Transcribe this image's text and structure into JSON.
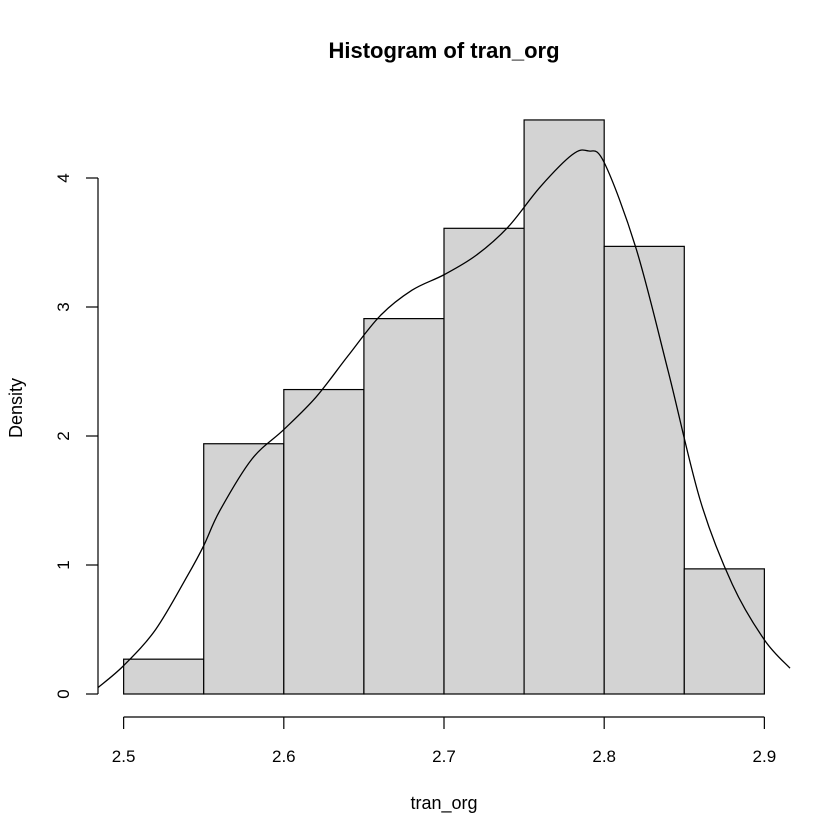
{
  "chart_data": {
    "type": "bar",
    "title": "Histogram of tran_org",
    "xlabel": "tran_org",
    "ylabel": "Density",
    "bin_edges": [
      2.5,
      2.55,
      2.6,
      2.65,
      2.7,
      2.75,
      2.8,
      2.85,
      2.9
    ],
    "values": [
      0.27,
      1.94,
      2.36,
      2.91,
      3.61,
      4.45,
      3.47,
      0.97
    ],
    "bar_color": "#d3d3d3",
    "xticks": [
      2.5,
      2.6,
      2.7,
      2.8,
      2.9
    ],
    "xtick_labels": [
      "2.5",
      "2.6",
      "2.7",
      "2.8",
      "2.9"
    ],
    "yticks": [
      0,
      1,
      2,
      3,
      4
    ],
    "ytick_labels": [
      "0",
      "1",
      "2",
      "3",
      "4"
    ],
    "xlim": [
      2.484,
      2.916
    ],
    "ylim": [
      0,
      4.45
    ],
    "grid": false,
    "density_curve": {
      "x": [
        2.484,
        2.5,
        2.52,
        2.54,
        2.55,
        2.56,
        2.58,
        2.6,
        2.62,
        2.64,
        2.66,
        2.68,
        2.7,
        2.72,
        2.74,
        2.76,
        2.78,
        2.79,
        2.8,
        2.82,
        2.84,
        2.86,
        2.88,
        2.9,
        2.916
      ],
      "y": [
        0.05,
        0.22,
        0.5,
        0.92,
        1.15,
        1.42,
        1.82,
        2.05,
        2.3,
        2.62,
        2.93,
        3.13,
        3.25,
        3.4,
        3.62,
        3.93,
        4.18,
        4.21,
        4.12,
        3.45,
        2.5,
        1.5,
        0.85,
        0.42,
        0.2
      ]
    }
  }
}
